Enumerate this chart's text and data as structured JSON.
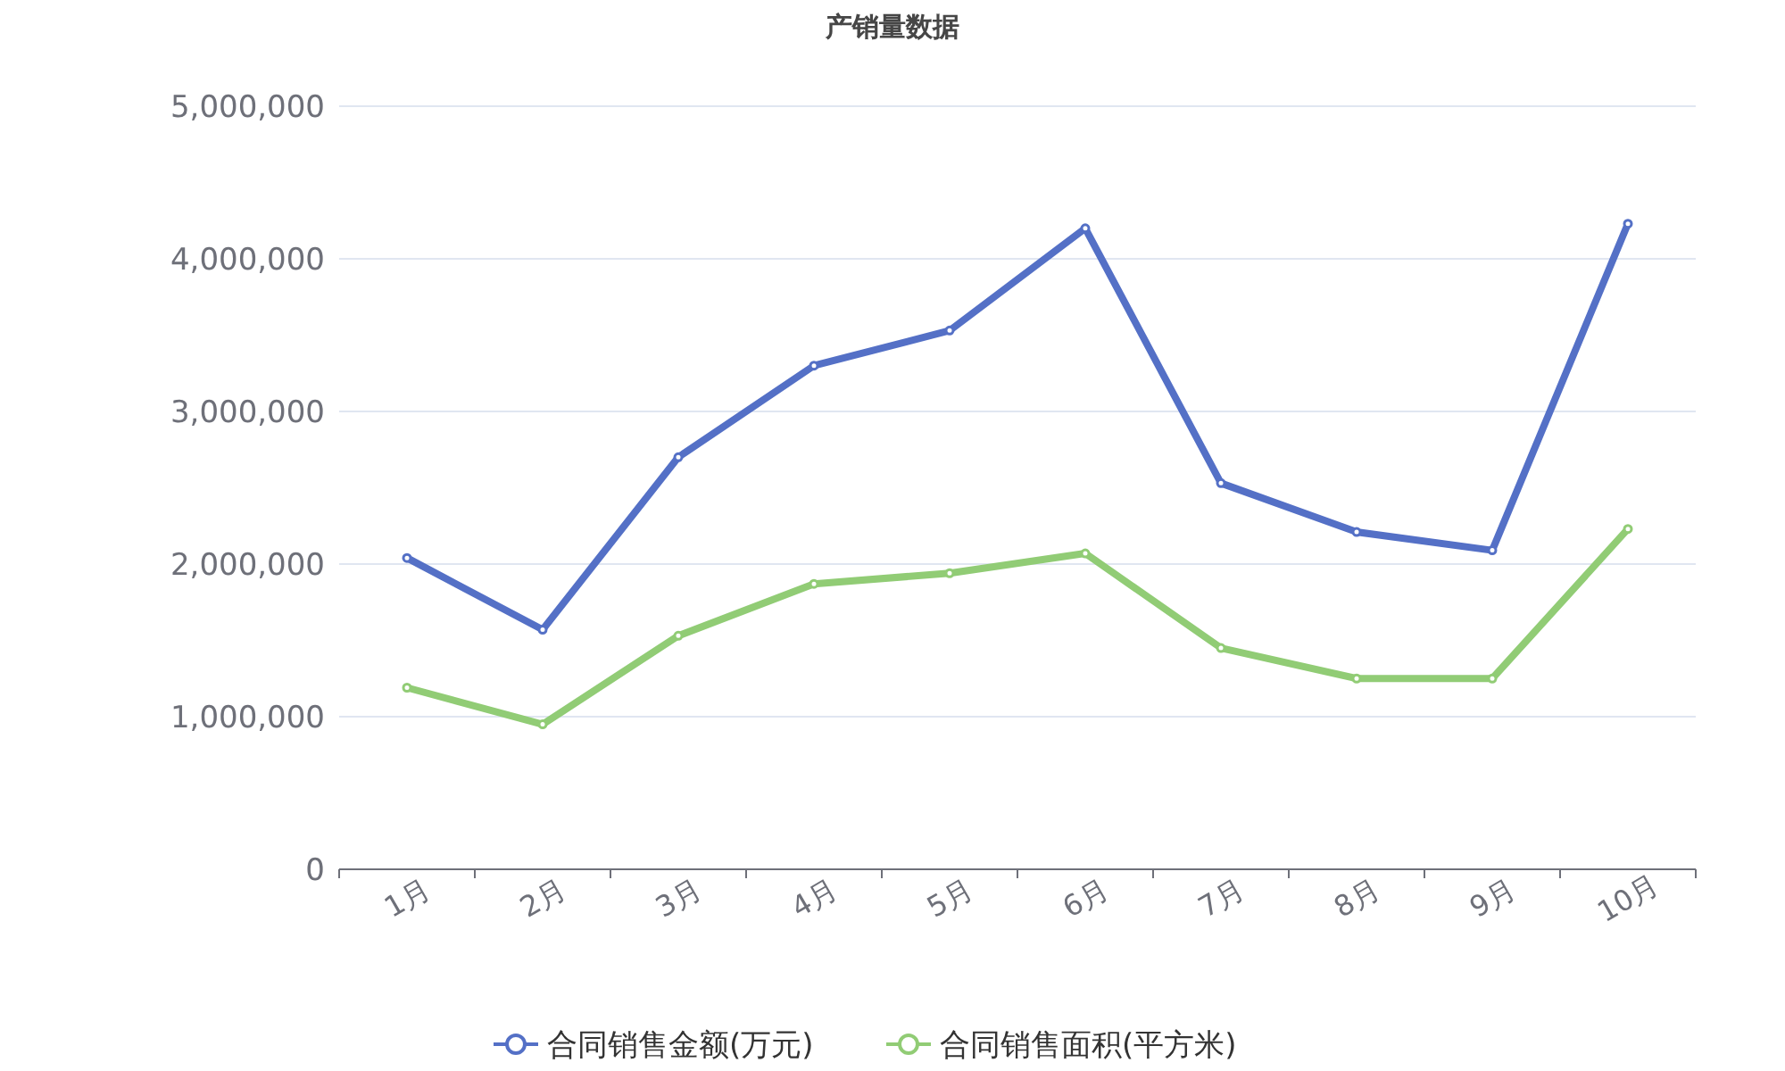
{
  "chart_data": {
    "type": "line",
    "title": "产销量数据",
    "categories": [
      "1月",
      "2月",
      "3月",
      "4月",
      "5月",
      "6月",
      "7月",
      "8月",
      "9月",
      "10月"
    ],
    "series": [
      {
        "name": "合同销售金额(万元)",
        "color": "#5470c6",
        "values": [
          2040000,
          1570000,
          2700000,
          3300000,
          3530000,
          4200000,
          2530000,
          2210000,
          2090000,
          4230000
        ]
      },
      {
        "name": "合同销售面积(平方米)",
        "color": "#91cc75",
        "values": [
          1190000,
          950000,
          1530000,
          1870000,
          1940000,
          2070000,
          1450000,
          1250000,
          1250000,
          2230000
        ]
      }
    ],
    "ylim": [
      0,
      5000000
    ],
    "yticks": [
      0,
      {
        "value": 1000000,
        "label": "1,000,000"
      },
      {
        "value": 2000000,
        "label": "2,000,000"
      },
      {
        "value": 3000000,
        "label": "3,000,000"
      },
      {
        "value": 4000000,
        "label": "4,000,000"
      },
      {
        "value": 5000000,
        "label": "5,000,000"
      }
    ],
    "grid": "y",
    "legend": "bottom",
    "marker": "circle",
    "line_style": "solid"
  }
}
